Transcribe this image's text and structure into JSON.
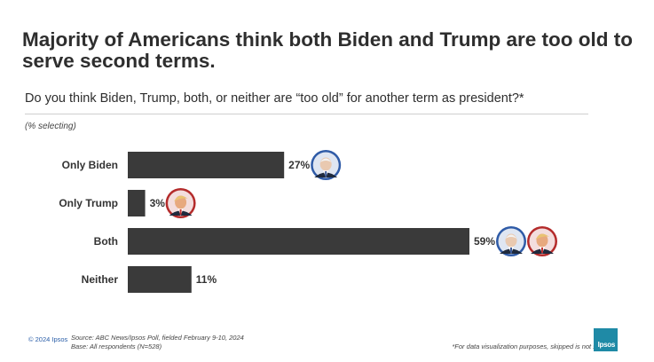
{
  "header": {
    "title": "Majority of Americans think both Biden and Trump are too old to serve second terms.",
    "question": "Do you think Biden, Trump, both, or neither are “too old” for another term as president?*",
    "subnote": "(% selecting)"
  },
  "chart_data": {
    "type": "bar",
    "orientation": "horizontal",
    "categories": [
      "Only Biden",
      "Only Trump",
      "Both",
      "Neither"
    ],
    "values": [
      27,
      3,
      59,
      11
    ],
    "value_labels": [
      "27%",
      "3%",
      "59%",
      "11%"
    ],
    "title": "",
    "xlabel": "",
    "ylabel": "",
    "xlim": [
      0,
      100
    ],
    "grid": false,
    "bar_color": "#3a3a3a",
    "portraits": [
      [
        "biden"
      ],
      [
        "trump"
      ],
      [
        "biden",
        "trump"
      ],
      []
    ]
  },
  "portrait_colors": {
    "biden_ring": "#2f5ba7",
    "trump_ring": "#b42b2b"
  },
  "footer": {
    "copyright": "© 2024 Ipsos",
    "source_line1": "Source: ABC News/Ipsos Poll, fielded February 9-10, 2024",
    "source_line2": "Base: All respondents (N=528)",
    "note": "*For data visualization purposes, skipped is not shown.",
    "logo_text": "Ipsos"
  }
}
